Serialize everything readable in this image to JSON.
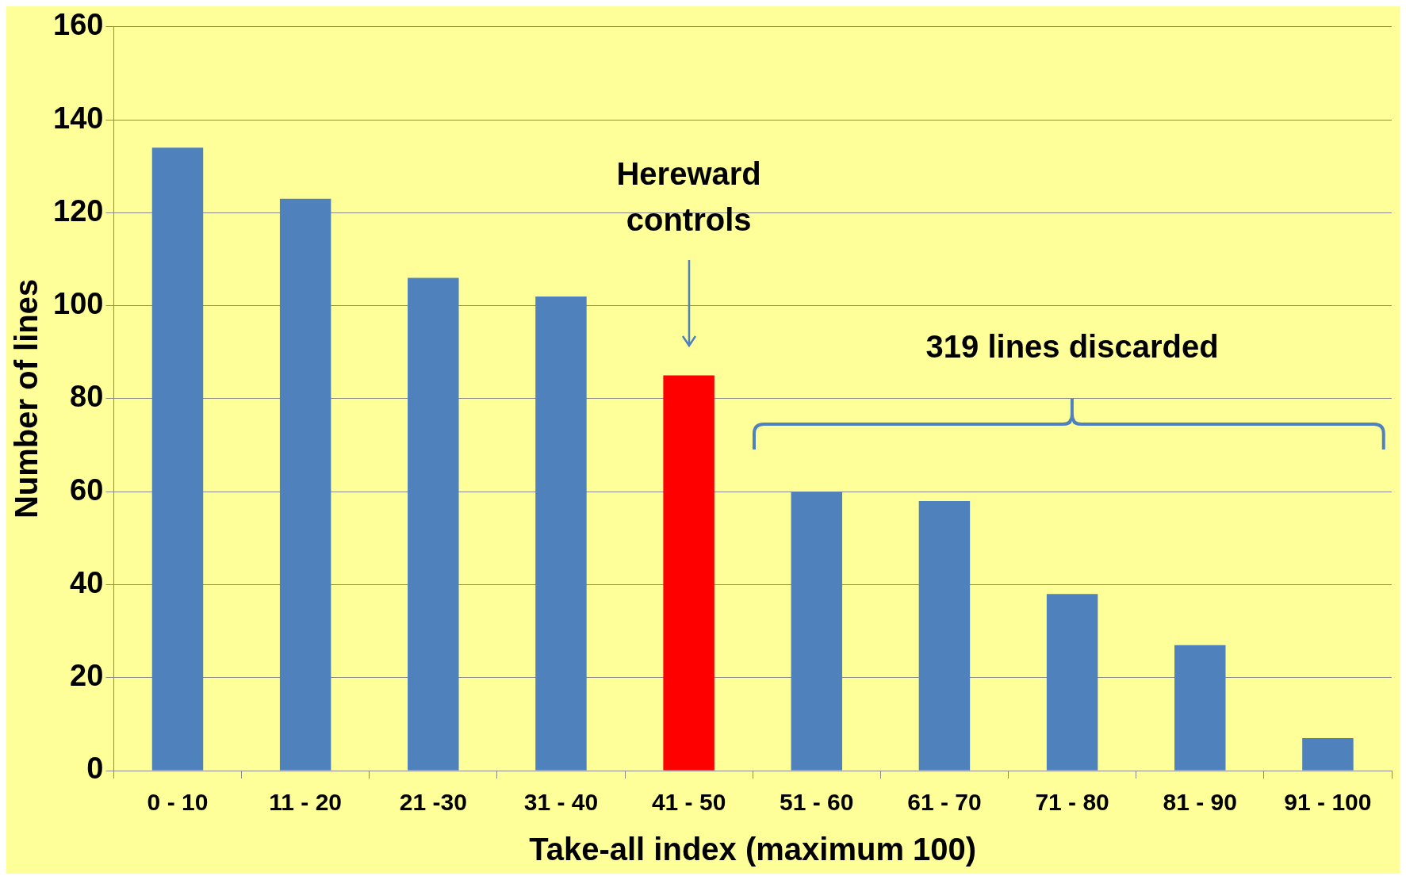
{
  "chart_data": {
    "type": "bar",
    "xlabel": "Take-all index (maximum 100)",
    "ylabel": "Number of lines",
    "categories": [
      "0 - 10",
      "11 - 20",
      "21 -30",
      "31 - 40",
      "41 - 50",
      "51 - 60",
      "61 - 70",
      "71 - 80",
      "81 - 90",
      "91 - 100"
    ],
    "values": [
      134,
      123,
      106,
      102,
      85,
      60,
      58,
      38,
      27,
      7
    ],
    "colors": [
      "#4f81bd",
      "#4f81bd",
      "#4f81bd",
      "#4f81bd",
      "#ff0000",
      "#4f81bd",
      "#4f81bd",
      "#4f81bd",
      "#4f81bd",
      "#4f81bd"
    ],
    "ylim": [
      0,
      160
    ],
    "yticks": [
      0,
      20,
      40,
      60,
      80,
      100,
      120,
      140,
      160
    ],
    "grid": "y",
    "legend": false,
    "annotations": [
      "Hereward controls",
      "319 lines discarded"
    ]
  }
}
